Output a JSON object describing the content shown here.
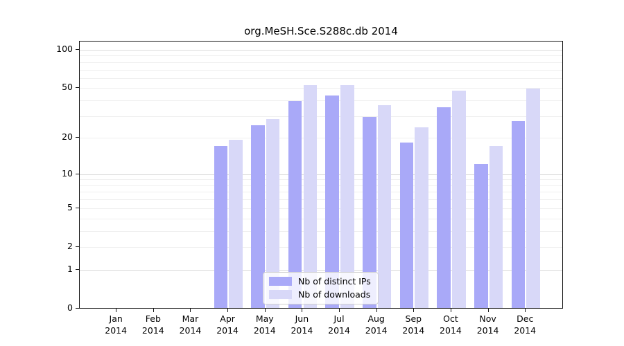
{
  "title": "org.MeSH.Sce.S288c.db 2014",
  "chart_data": {
    "type": "bar",
    "title": "org.MeSH.Sce.S288c.db 2014",
    "categories": [
      "Jan",
      "Feb",
      "Mar",
      "Apr",
      "May",
      "Jun",
      "Jul",
      "Aug",
      "Sep",
      "Oct",
      "Nov",
      "Dec"
    ],
    "year": "2014",
    "series": [
      {
        "name": "Nb of distinct IPs",
        "color": "#a9a9f8",
        "values": [
          0,
          0,
          0,
          17,
          25,
          39,
          43,
          29,
          18,
          35,
          12,
          27
        ]
      },
      {
        "name": "Nb of downloads",
        "color": "#d8d8f8",
        "values": [
          0,
          0,
          0,
          19,
          28,
          52,
          52,
          36,
          24,
          47,
          17,
          49
        ]
      }
    ],
    "xlabel": "",
    "ylabel": "",
    "yscale": "log1p",
    "ylim": [
      0,
      117
    ],
    "ytick_values": [
      0,
      1,
      2,
      5,
      10,
      20,
      50,
      100
    ],
    "ytick_labels": [
      "0",
      "1",
      "2",
      "5",
      "10",
      "20",
      "50",
      "100"
    ],
    "gridlines": {
      "minor": [
        2,
        3,
        4,
        5,
        6,
        7,
        8,
        9,
        20,
        30,
        40,
        50,
        60,
        70,
        80,
        90
      ],
      "major": [
        1,
        10,
        100
      ]
    },
    "grid": true,
    "legend_position": "bottom-center"
  }
}
